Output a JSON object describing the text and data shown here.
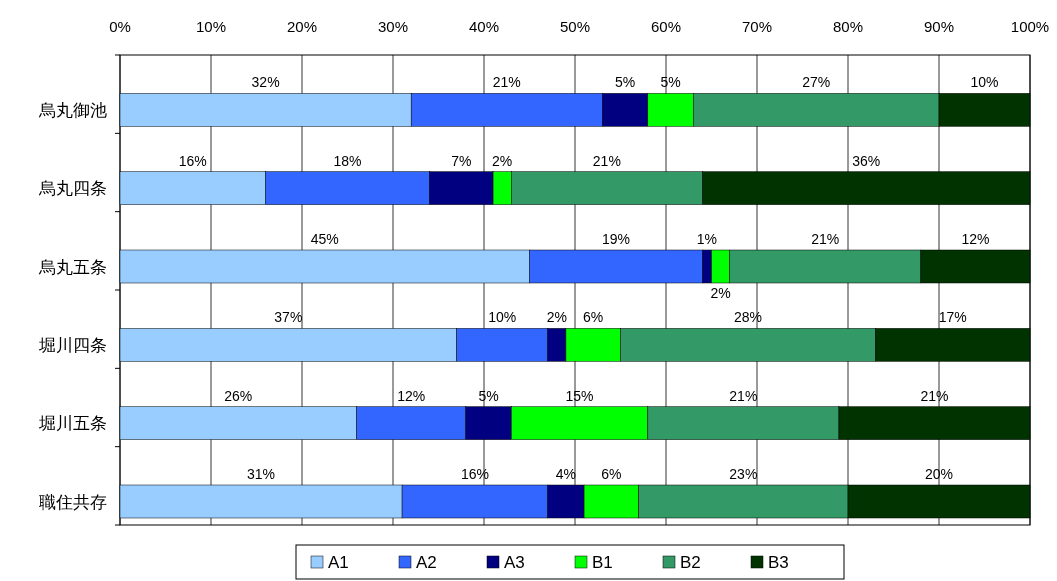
{
  "chart_data": {
    "type": "bar",
    "orientation": "horizontal",
    "stacked": true,
    "categories": [
      "烏丸御池",
      "烏丸四条",
      "烏丸五条",
      "堀川四条",
      "堀川五条",
      "職住共存"
    ],
    "series": [
      {
        "name": "A1",
        "color": "#99ccff",
        "values": [
          32,
          16,
          45,
          37,
          26,
          31
        ],
        "value_labels": [
          "32%",
          "16%",
          "45%",
          "37%",
          "26%",
          "31%"
        ]
      },
      {
        "name": "A2",
        "color": "#3366ff",
        "values": [
          21,
          18,
          19,
          10,
          12,
          16
        ],
        "value_labels": [
          "21%",
          "18%",
          "19%",
          "10%",
          "12%",
          "16%"
        ]
      },
      {
        "name": "A3",
        "color": "#000080",
        "values": [
          5,
          7,
          1,
          2,
          5,
          4
        ],
        "value_labels": [
          "5%",
          "7%",
          "1%",
          "2%",
          "5%",
          "4%"
        ]
      },
      {
        "name": "B1",
        "color": "#00ff00",
        "values": [
          5,
          2,
          2,
          6,
          15,
          6
        ],
        "value_labels": [
          "5%",
          "2%",
          "2%",
          "6%",
          "15%",
          "6%"
        ]
      },
      {
        "name": "B2",
        "color": "#339966",
        "values": [
          27,
          21,
          21,
          28,
          21,
          23
        ],
        "value_labels": [
          "27%",
          "21%",
          "21%",
          "28%",
          "21%",
          "23%"
        ]
      },
      {
        "name": "B3",
        "color": "#003300",
        "values": [
          10,
          36,
          12,
          17,
          21,
          20
        ],
        "value_labels": [
          "10%",
          "36%",
          "12%",
          "17%",
          "21%",
          "20%"
        ]
      }
    ],
    "xlim": [
      0,
      100
    ],
    "xticks": [
      {
        "value": 0,
        "label": "0%"
      },
      {
        "value": 10,
        "label": "10%"
      },
      {
        "value": 20,
        "label": "20%"
      },
      {
        "value": 30,
        "label": "30%"
      },
      {
        "value": 40,
        "label": "40%"
      },
      {
        "value": 50,
        "label": "50%"
      },
      {
        "value": 60,
        "label": "60%"
      },
      {
        "value": 70,
        "label": "70%"
      },
      {
        "value": 80,
        "label": "80%"
      },
      {
        "value": 90,
        "label": "90%"
      },
      {
        "value": 100,
        "label": "100%"
      }
    ],
    "grid": "x",
    "legend": "bottom"
  }
}
